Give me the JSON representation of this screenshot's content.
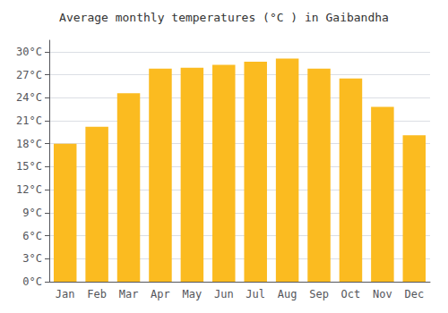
{
  "chart_data": {
    "type": "bar",
    "title": "Average monthly temperatures (°C ) in Gaibandha",
    "categories": [
      "Jan",
      "Feb",
      "Mar",
      "Apr",
      "May",
      "Jun",
      "Jul",
      "Aug",
      "Sep",
      "Oct",
      "Nov",
      "Dec"
    ],
    "values": [
      18.0,
      20.2,
      24.6,
      27.8,
      27.9,
      28.3,
      28.7,
      29.1,
      27.8,
      26.5,
      22.8,
      19.1
    ],
    "color": "#FBBB20",
    "ylim": [
      0,
      31.5
    ],
    "yticks": [
      {
        "value": 0,
        "label": "0°C"
      },
      {
        "value": 3,
        "label": "3°C"
      },
      {
        "value": 6,
        "label": "6°C"
      },
      {
        "value": 9,
        "label": "9°C"
      },
      {
        "value": 12,
        "label": "12°C"
      },
      {
        "value": 15,
        "label": "15°C"
      },
      {
        "value": 18,
        "label": "18°C"
      },
      {
        "value": 21,
        "label": "21°C"
      },
      {
        "value": 24,
        "label": "24°C"
      },
      {
        "value": 27,
        "label": "27°C"
      },
      {
        "value": 30,
        "label": "30°C"
      }
    ],
    "grid": true
  }
}
